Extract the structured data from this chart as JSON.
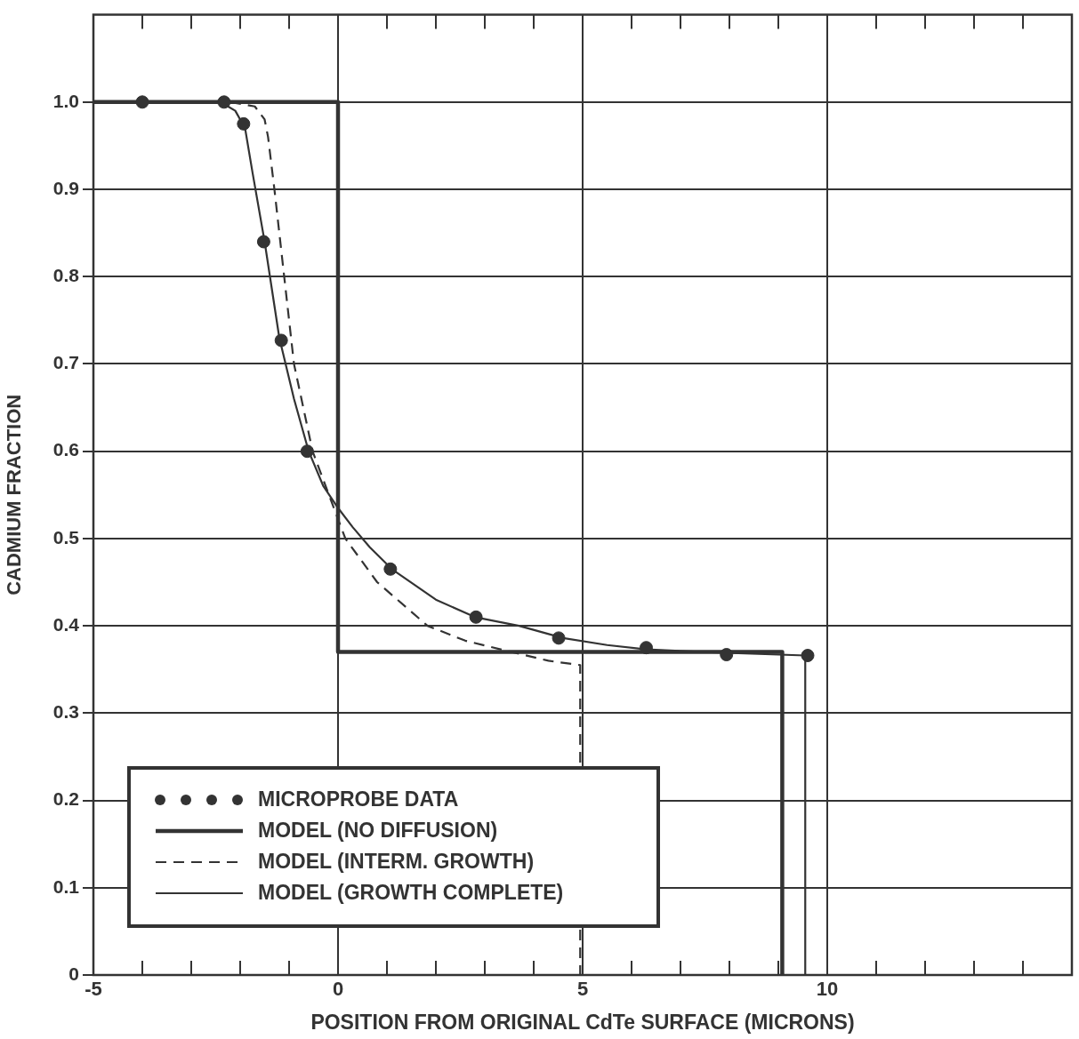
{
  "chart_data": {
    "type": "line",
    "xlabel": "POSITION FROM ORIGINAL CdTe SURFACE (MICRONS)",
    "ylabel": "CADMIUM FRACTION",
    "xlim": [
      -5,
      15
    ],
    "ylim": [
      0,
      1.1
    ],
    "xticks": [
      -5,
      {
        "value": -4,
        "label": null
      },
      {
        "value": -3,
        "label": null
      },
      {
        "value": -2,
        "label": null
      },
      {
        "value": -1,
        "label": null
      },
      0,
      {
        "value": 1,
        "label": null
      },
      {
        "value": 2,
        "label": null
      },
      {
        "value": 3,
        "label": null
      },
      {
        "value": 4,
        "label": null
      },
      5,
      {
        "value": 6,
        "label": null
      },
      {
        "value": 7,
        "label": null
      },
      {
        "value": 8,
        "label": null
      },
      {
        "value": 9,
        "label": null
      },
      10,
      {
        "value": 11,
        "label": null
      },
      {
        "value": 12,
        "label": null
      },
      {
        "value": 13,
        "label": null
      },
      {
        "value": 14,
        "label": null
      },
      {
        "value": 15,
        "label": null
      }
    ],
    "yticks": [
      0,
      0.1,
      0.2,
      0.3,
      0.4,
      0.5,
      0.6,
      0.7,
      0.8,
      0.9,
      {
        "value": 1,
        "label": "1.0"
      }
    ],
    "grid": true,
    "legend": "bottom left",
    "series": [
      {
        "name": "MICROPROBE DATA",
        "type": "scatter",
        "marker": "circle",
        "color": "#333333",
        "x": [
          -4,
          -2.33,
          -1.93,
          -1.52,
          -1.16,
          -0.63,
          1.07,
          2.82,
          4.51,
          6.3,
          7.94,
          9.6
        ],
        "values": [
          1.0,
          1.0,
          0.975,
          0.84,
          0.727,
          0.6,
          0.465,
          0.41,
          0.386,
          0.375,
          0.367,
          0.366
        ]
      },
      {
        "name": "MODEL (NO DIFFUSION)",
        "line_style": "solid",
        "color": "#333333",
        "x": [
          -5,
          0,
          0,
          9.08,
          9.08
        ],
        "values": [
          1.0,
          1.0,
          0.37,
          0.37,
          0
        ]
      },
      {
        "name": "MODEL (INTERM. GROWTH)",
        "line_style": "dashed",
        "color": "#333333",
        "x": [
          -2.2,
          -1.7,
          -1.5,
          -1.43,
          -1.3,
          -1.1,
          -0.9,
          -0.52,
          0.15,
          0.8,
          1.83,
          2.6,
          3.55,
          4.3,
          4.95,
          4.95
        ],
        "values": [
          1.0,
          0.995,
          0.98,
          0.96,
          0.9,
          0.8,
          0.7,
          0.6,
          0.5,
          0.45,
          0.4,
          0.383,
          0.37,
          0.36,
          0.355,
          0
        ]
      },
      {
        "name": "MODEL (GROWTH COMPLETE)",
        "line_style": "solid",
        "color": "#333333",
        "x": [
          -5,
          -2.4,
          -2.1,
          -1.9,
          -1.75,
          -1.5,
          -1.2,
          -0.9,
          -0.6,
          -0.3,
          0,
          0.3,
          0.65,
          1.1,
          2,
          2.8,
          3.7,
          4.6,
          5.5,
          6.3,
          7.5,
          9.55,
          9.55
        ],
        "values": [
          1.0,
          1.0,
          0.99,
          0.97,
          0.92,
          0.84,
          0.73,
          0.66,
          0.6,
          0.56,
          0.535,
          0.513,
          0.49,
          0.465,
          0.43,
          0.41,
          0.4,
          0.386,
          0.378,
          0.373,
          0.37,
          0.366,
          0
        ]
      }
    ]
  }
}
